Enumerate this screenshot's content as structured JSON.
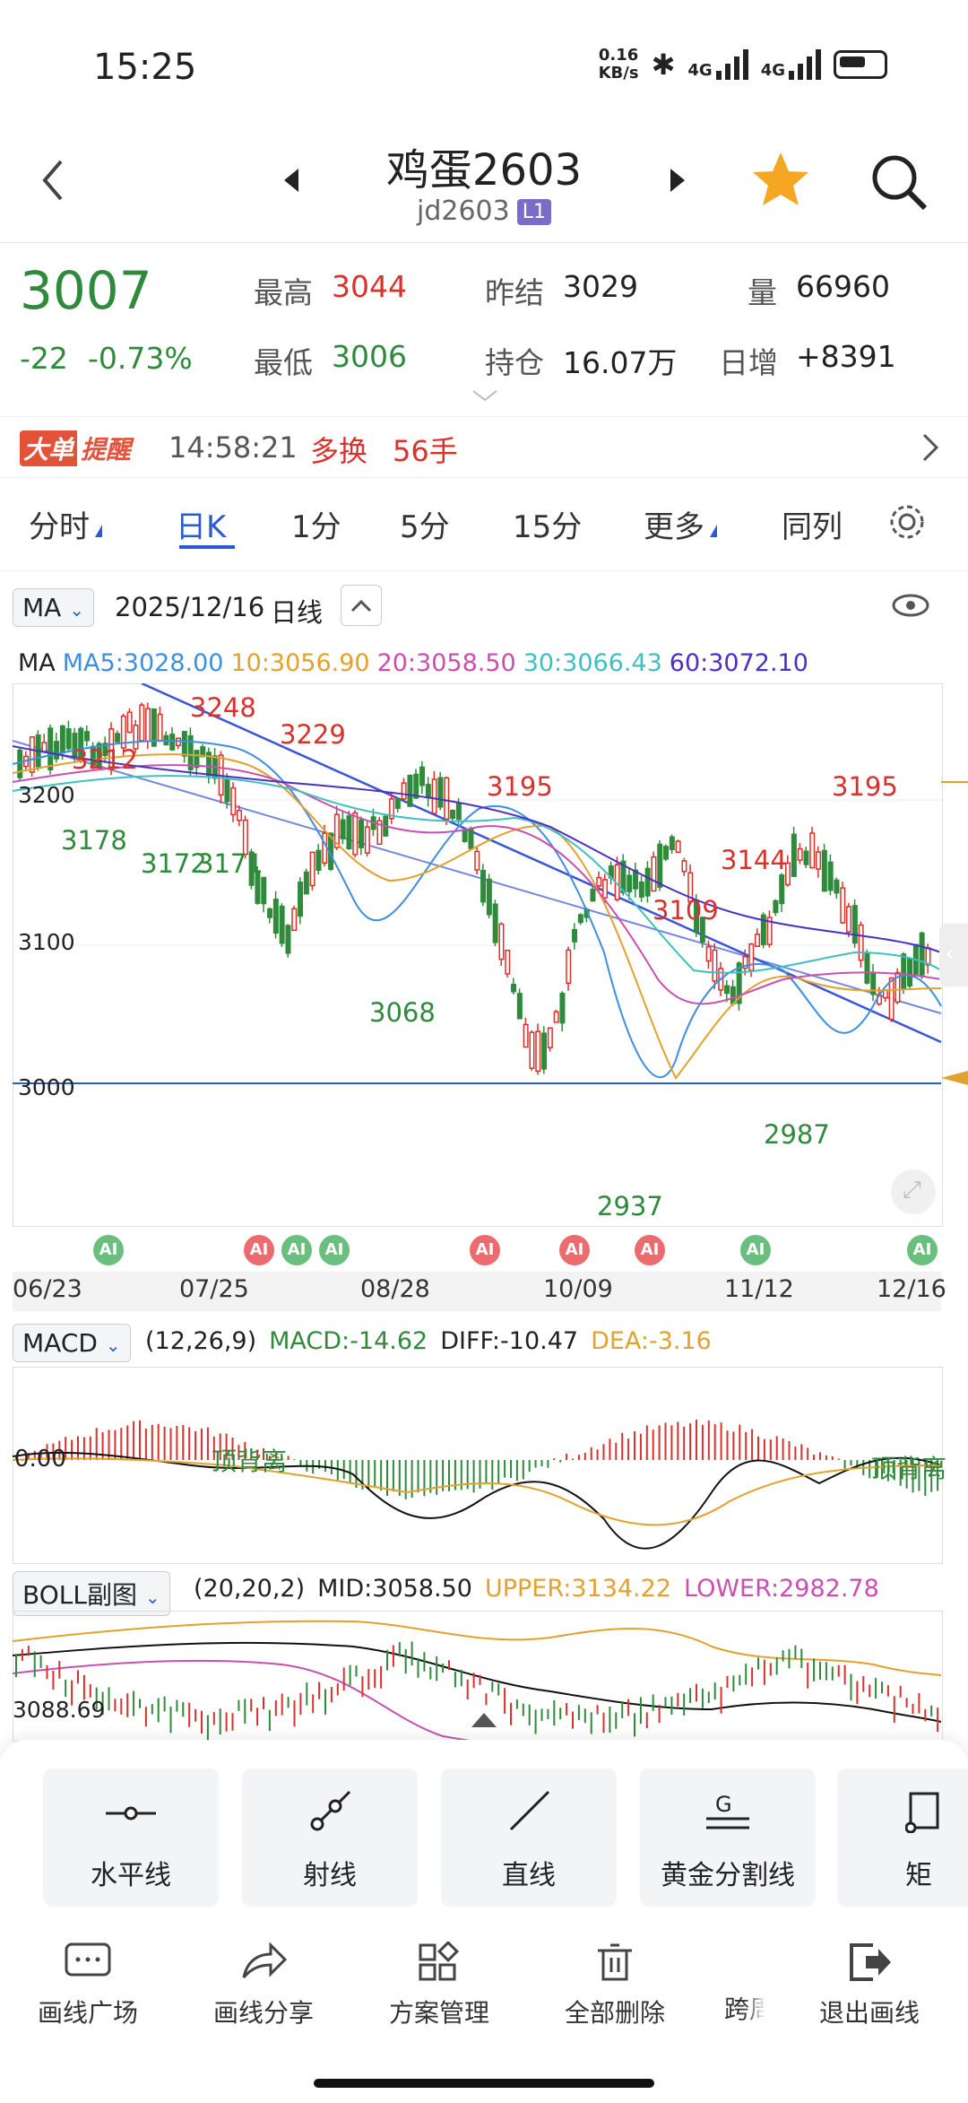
{
  "status_bar": {
    "time": "15:25",
    "net_speed_top": "0.16",
    "net_speed_unit": "KB/s",
    "net1": "4G",
    "net2": "4G"
  },
  "header": {
    "title": "鸡蛋2603",
    "code": "jd2603",
    "badge": "L1"
  },
  "quote": {
    "last": "3007",
    "change": "-22",
    "change_pct": "-0.73%",
    "high_label": "最高",
    "high": "3044",
    "low_label": "最低",
    "low": "3006",
    "prev_settle_label": "昨结",
    "prev_settle": "3029",
    "open_interest_label": "持仓",
    "open_interest": "16.07万",
    "volume_label": "量",
    "volume": "66960",
    "daily_inc_label": "日增",
    "daily_inc": "+8391"
  },
  "alert": {
    "tag_a": "大单",
    "tag_b": "提醒",
    "time": "14:58:21",
    "type": "多换",
    "lots": "56手"
  },
  "tabs": [
    {
      "label": "分时"
    },
    {
      "label": "日K"
    },
    {
      "label": "1分"
    },
    {
      "label": "5分"
    },
    {
      "label": "15分"
    },
    {
      "label": "更多"
    },
    {
      "label": "同列"
    }
  ],
  "chart_header": {
    "indicator": "MA",
    "date": "2025/12/16",
    "period": "日线"
  },
  "ma_legend": {
    "label": "MA",
    "ma5": "MA5:3028.00",
    "ma10": "10:3056.90",
    "ma20": "20:3058.50",
    "ma30": "30:3066.43",
    "ma60": "60:3072.10"
  },
  "colors": {
    "ma5": "#3d8fe0",
    "ma10": "#e3a12d",
    "ma20": "#c94fb0",
    "ma30": "#3fbfbf",
    "ma60": "#4b2fc9",
    "up": "#d9312b",
    "down": "#2f8a3c"
  },
  "kline": {
    "y_ticks": [
      "3200",
      "3100",
      "3000"
    ],
    "annotations": {
      "a3212": "3212",
      "a3248": "3248",
      "a3229": "3229",
      "a3178": "3178",
      "a3172": "3172",
      "a3171": "3171",
      "a3068": "3068",
      "a3195a": "3195",
      "a3109": "3109",
      "a3144": "3144",
      "a3195b": "3195",
      "a2987": "2987",
      "a2937": "2937"
    },
    "ai_label": "AI",
    "x_dates": [
      "06/23",
      "07/25",
      "08/28",
      "10/09",
      "11/12",
      "12/16"
    ]
  },
  "macd": {
    "selector": "MACD",
    "params": "(12,26,9)",
    "macd": "MACD:-14.62",
    "diff": "DIFF:-10.47",
    "dea": "DEA:-3.16",
    "zero_label": "0.00",
    "note_left": "顶背离",
    "note_right": "顶背离"
  },
  "boll": {
    "selector": "BOLL副图",
    "params": "(20,20,2)",
    "mid": "MID:3058.50",
    "upper": "UPPER:3134.22",
    "lower": "LOWER:2982.78",
    "value_label": "3088.69"
  },
  "draw_tools": [
    {
      "label": "水平线",
      "icon": "horizontal-line-icon"
    },
    {
      "label": "射线",
      "icon": "ray-icon"
    },
    {
      "label": "直线",
      "icon": "straight-line-icon"
    },
    {
      "label": "黄金分割线",
      "icon": "golden-ratio-icon"
    },
    {
      "label": "矩",
      "icon": "rectangle-icon"
    }
  ],
  "bottom_bar": [
    {
      "label": "画线广场",
      "icon": "chat-icon"
    },
    {
      "label": "画线分享",
      "icon": "share-icon"
    },
    {
      "label": "方案管理",
      "icon": "grid-icon"
    },
    {
      "label": "全部删除",
      "icon": "trash-icon"
    },
    {
      "label": "跨周",
      "icon": "period-icon"
    },
    {
      "label": "退出画线",
      "icon": "exit-icon"
    }
  ]
}
